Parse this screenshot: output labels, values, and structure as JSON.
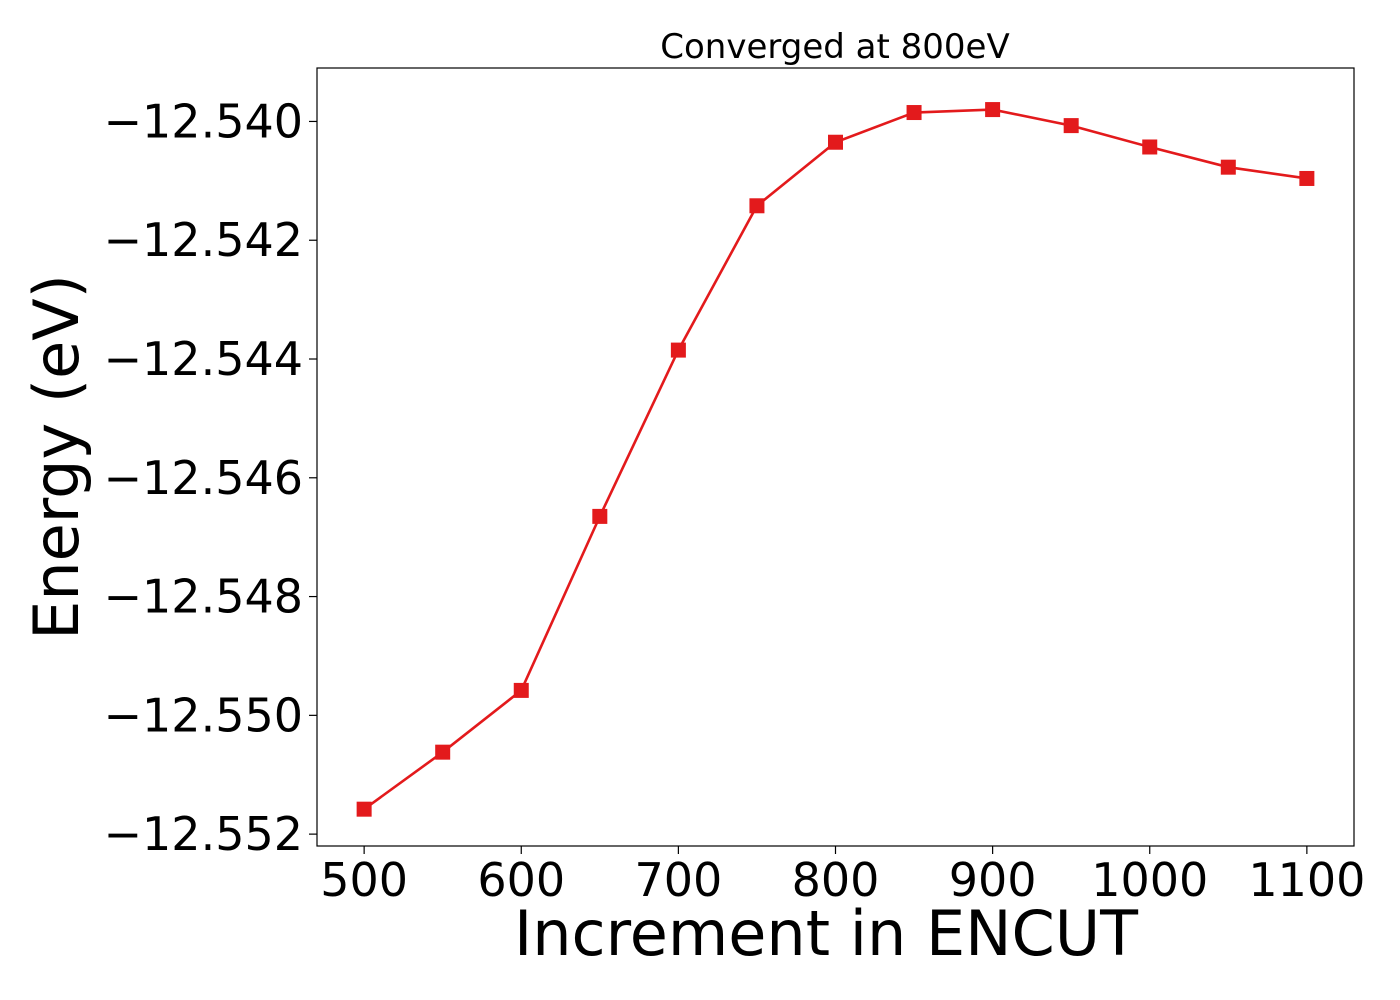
{
  "chart_data": {
    "type": "line",
    "title": "Converged at 800eV",
    "xlabel": "Increment in ENCUT",
    "ylabel": "Energy (eV)",
    "xlim": [
      470,
      1130
    ],
    "ylim": [
      -12.5522,
      -12.5391
    ],
    "x_ticks": [
      500,
      600,
      700,
      800,
      900,
      1000,
      1100
    ],
    "x_tick_labels": [
      "500",
      "600",
      "700",
      "800",
      "900",
      "1000",
      "1100"
    ],
    "y_ticks": [
      -12.552,
      -12.55,
      -12.548,
      -12.546,
      -12.544,
      -12.542,
      -12.54
    ],
    "y_tick_labels": [
      "−12.552",
      "−12.550",
      "−12.548",
      "−12.546",
      "−12.544",
      "−12.542",
      "−12.540"
    ],
    "grid": false,
    "legend": "none",
    "series": [
      {
        "color": "#e31a1c",
        "marker": "square",
        "x": [
          500,
          550,
          600,
          650,
          700,
          750,
          800,
          850,
          900,
          950,
          1000,
          1050,
          1100
        ],
        "y": [
          -12.55158,
          -12.55062,
          -12.54958,
          -12.54665,
          -12.54385,
          -12.54142,
          -12.54035,
          -12.53985,
          -12.5398,
          -12.54007,
          -12.54043,
          -12.54077,
          -12.54096
        ]
      }
    ]
  }
}
